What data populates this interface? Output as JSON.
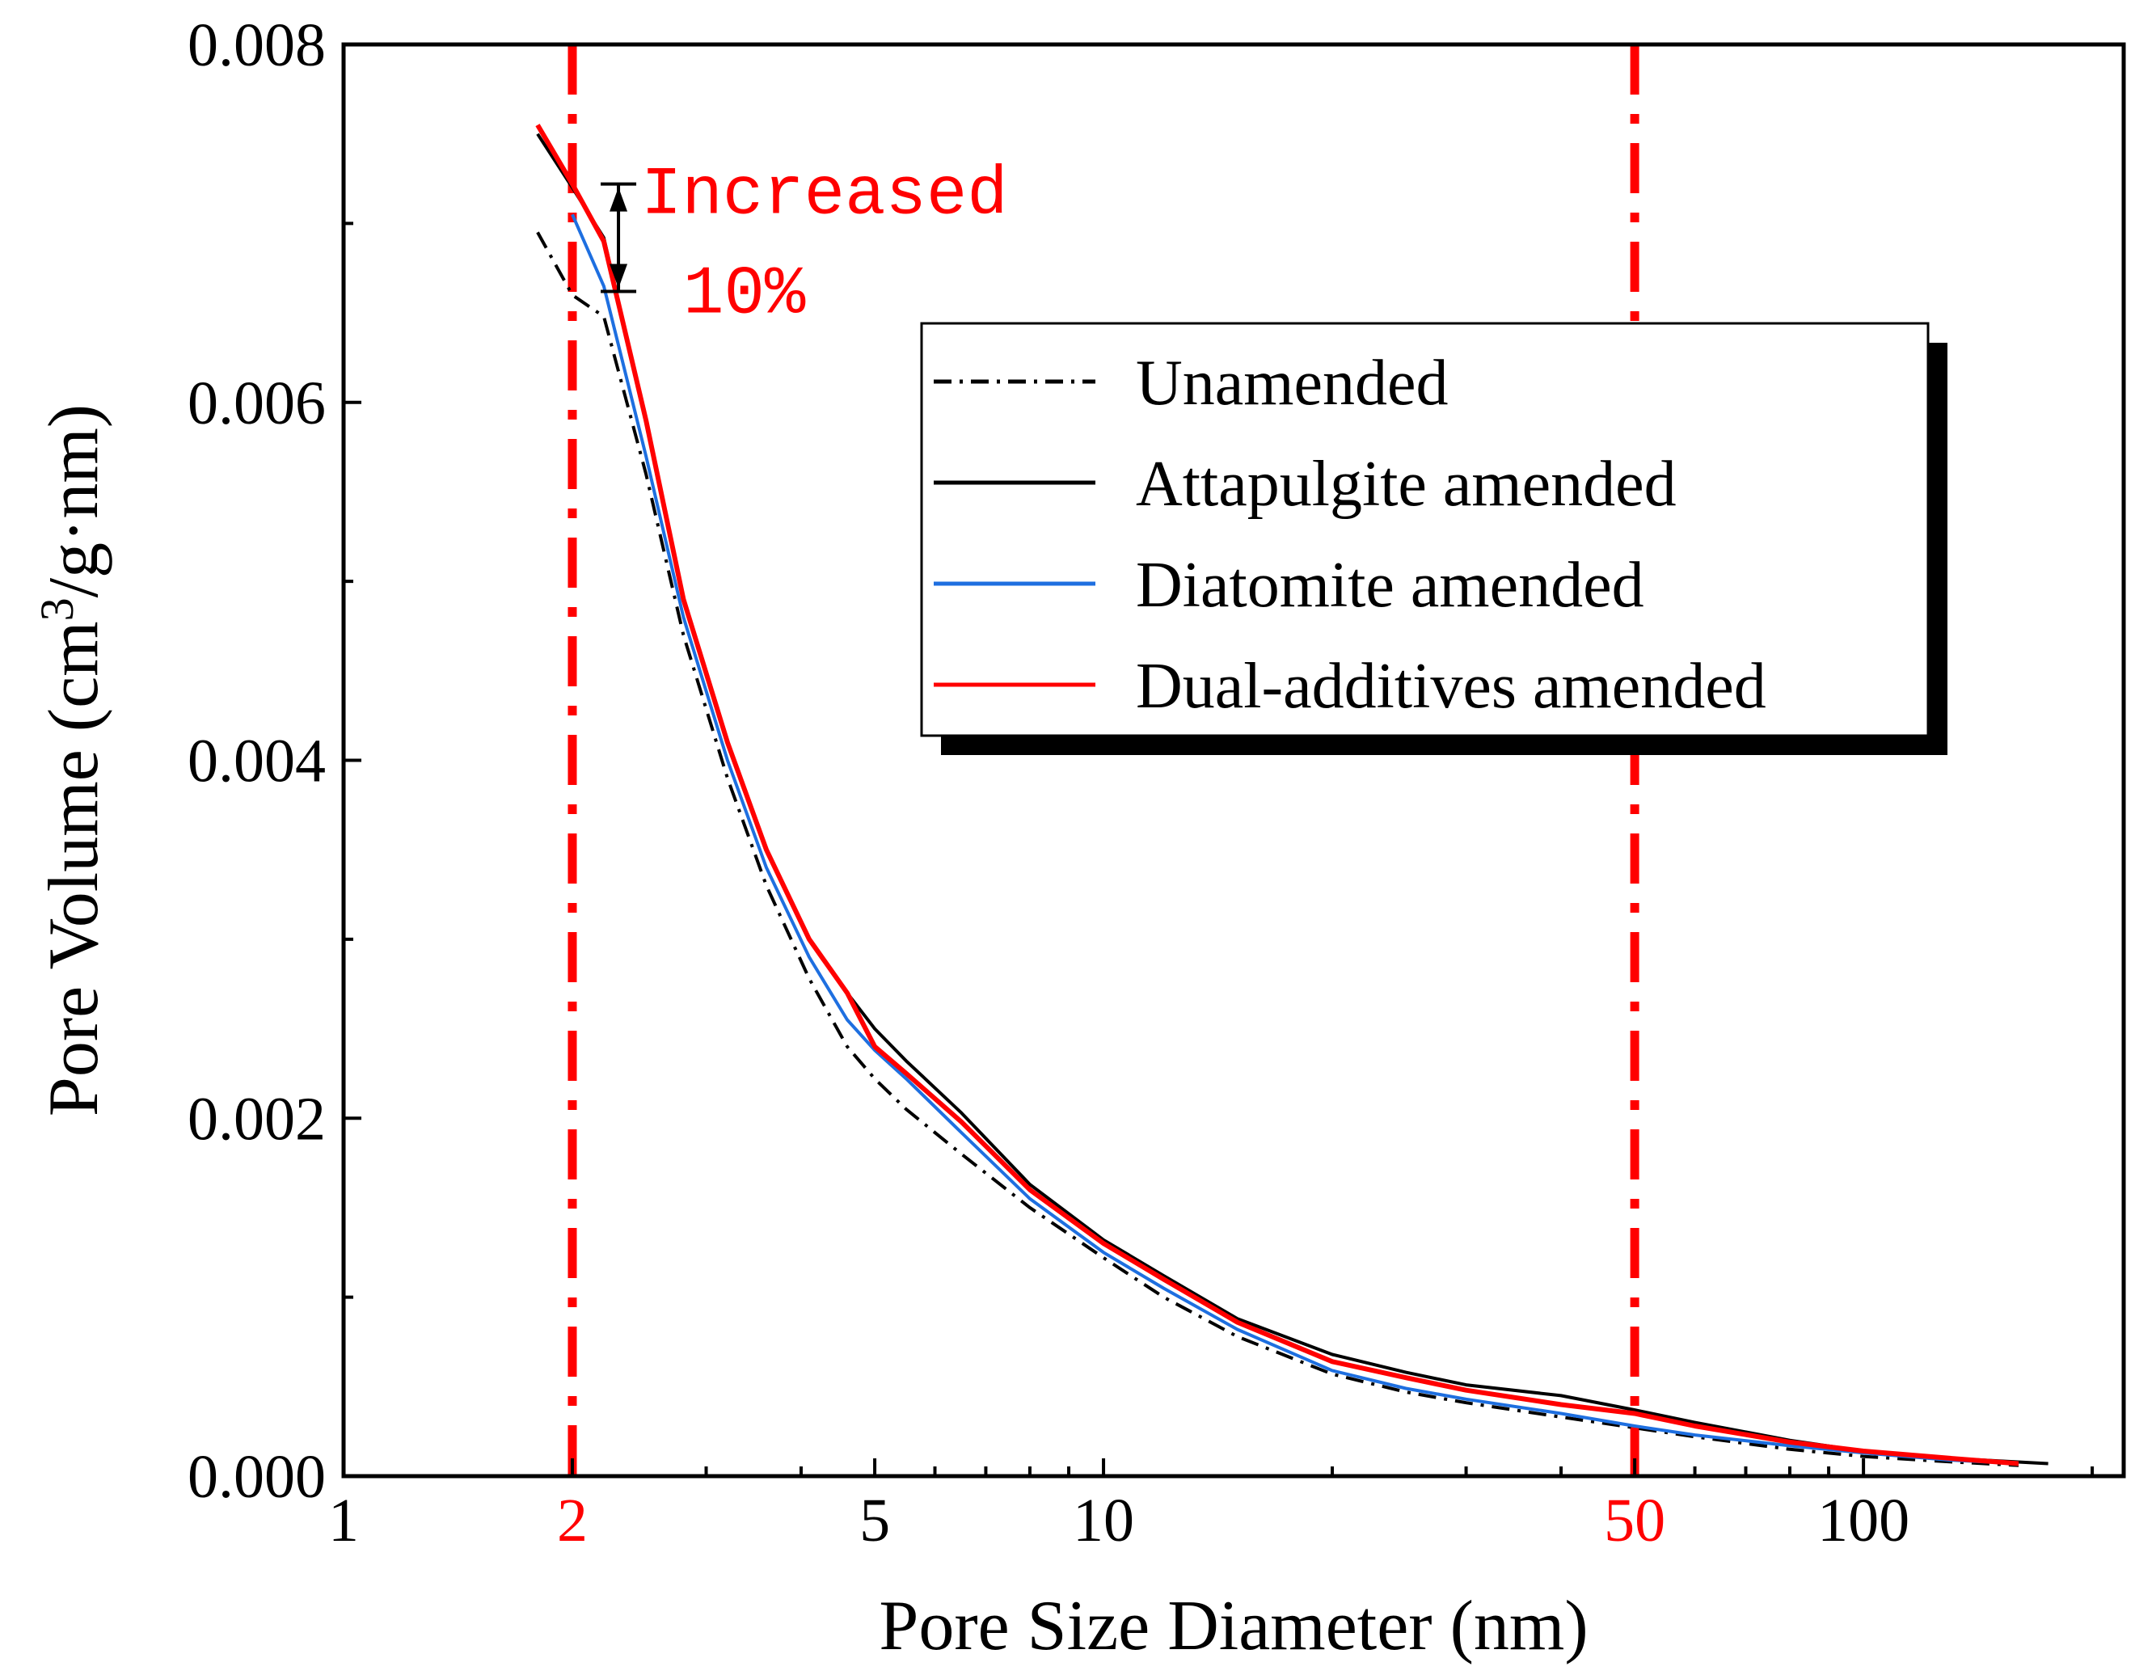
{
  "chart_data": {
    "type": "line",
    "xlabel": "Pore Size Diameter (nm)",
    "ylabel_main": "Pore Volume (cm",
    "ylabel_sup": "3",
    "ylabel_rest": "/g·nm)",
    "xscale": "log",
    "xlim": [
      1,
      220
    ],
    "ylim": [
      0,
      0.008
    ],
    "x_ticks": [
      {
        "value": 1,
        "label": "1",
        "color": "#000000"
      },
      {
        "value": 2,
        "label": "2",
        "color": "#ff0000"
      },
      {
        "value": 5,
        "label": "5",
        "color": "#000000"
      },
      {
        "value": 10,
        "label": "10",
        "color": "#000000"
      },
      {
        "value": 50,
        "label": "50",
        "color": "#ff0000"
      },
      {
        "value": 100,
        "label": "100",
        "color": "#000000"
      }
    ],
    "y_ticks": [
      {
        "value": 0,
        "label": "0.000"
      },
      {
        "value": 0.002,
        "label": "0.002"
      },
      {
        "value": 0.004,
        "label": "0.004"
      },
      {
        "value": 0.006,
        "label": "0.006"
      },
      {
        "value": 0.008,
        "label": "0.008"
      }
    ],
    "reference_lines": [
      {
        "x": 2,
        "color": "#ff0000",
        "style": "dash-dot"
      },
      {
        "x": 50,
        "color": "#ff0000",
        "style": "dash-dot"
      }
    ],
    "annotation": {
      "line1": "Increased",
      "line2": "10%",
      "color": "#ff0000",
      "x": 2.3,
      "y_top": 0.00722,
      "y_bottom": 0.00662
    },
    "legend": {
      "placement": "top-right",
      "shadow": true,
      "entries": [
        {
          "name": "Unamended",
          "color": "#000000",
          "dash": "dash-dot"
        },
        {
          "name": "Attapulgite amended",
          "color": "#000000",
          "dash": "solid"
        },
        {
          "name": "Diatomite amended",
          "color": "#1e6fe0",
          "dash": "solid"
        },
        {
          "name": "Dual-additives amended",
          "color": "#ff0000",
          "dash": "solid"
        }
      ]
    },
    "series": [
      {
        "name": "Unamended",
        "color": "#000000",
        "dash": "dash-dot",
        "width": 4,
        "x": [
          1.8,
          2.0,
          2.2,
          2.5,
          2.8,
          3.2,
          3.6,
          4.1,
          4.6,
          5.0,
          5.5,
          6.5,
          8,
          10,
          12,
          15,
          20,
          25,
          30,
          40,
          50,
          60,
          80,
          100,
          130,
          160
        ],
        "y": [
          0.00695,
          0.0066,
          0.00648,
          0.0056,
          0.0047,
          0.0039,
          0.0033,
          0.00278,
          0.0024,
          0.00222,
          0.00205,
          0.0018,
          0.0015,
          0.00122,
          0.001,
          0.00078,
          0.00057,
          0.00047,
          0.00041,
          0.00033,
          0.00027,
          0.00022,
          0.00015,
          0.00011,
          8e-05,
          6e-05
        ]
      },
      {
        "name": "Attapulgite amended",
        "color": "#000000",
        "dash": "solid",
        "width": 4,
        "x": [
          1.8,
          2.0,
          2.2,
          2.5,
          2.8,
          3.2,
          3.6,
          4.1,
          4.6,
          5.0,
          5.5,
          6.5,
          8,
          10,
          12,
          15,
          20,
          25,
          30,
          40,
          50,
          60,
          80,
          100,
          130,
          175
        ],
        "y": [
          0.0075,
          0.0072,
          0.00692,
          0.0059,
          0.0049,
          0.0041,
          0.0035,
          0.003,
          0.0027,
          0.0025,
          0.00232,
          0.00203,
          0.00163,
          0.00132,
          0.00112,
          0.00088,
          0.00068,
          0.00058,
          0.00051,
          0.00045,
          0.00037,
          0.0003,
          0.0002,
          0.00014,
          0.0001,
          7e-05
        ]
      },
      {
        "name": "Diatomite amended",
        "color": "#1e6fe0",
        "dash": "solid",
        "width": 4,
        "x": [
          2.0,
          2.2,
          2.5,
          2.8,
          3.2,
          3.6,
          4.1,
          4.6,
          5.0,
          5.5,
          6.5,
          8,
          10,
          12,
          15,
          20,
          25,
          30,
          40,
          50,
          60,
          80,
          100,
          130,
          160
        ],
        "y": [
          0.00705,
          0.00665,
          0.0057,
          0.0048,
          0.004,
          0.0034,
          0.0029,
          0.00255,
          0.00238,
          0.00222,
          0.00192,
          0.00155,
          0.00125,
          0.00105,
          0.00082,
          0.00059,
          0.00049,
          0.00043,
          0.00035,
          0.00028,
          0.00023,
          0.00017,
          0.00013,
          9e-05,
          7e-05
        ]
      },
      {
        "name": "Dual-additives amended",
        "color": "#ff0000",
        "dash": "solid",
        "width": 6,
        "x": [
          1.8,
          2.0,
          2.2,
          2.5,
          2.8,
          3.2,
          3.6,
          4.1,
          4.6,
          5.0,
          5.5,
          6.5,
          8,
          10,
          12,
          15,
          20,
          25,
          30,
          40,
          50,
          60,
          80,
          100,
          130,
          160
        ],
        "y": [
          0.00755,
          0.00722,
          0.0069,
          0.0059,
          0.0049,
          0.0041,
          0.0035,
          0.003,
          0.0027,
          0.0024,
          0.00225,
          0.00198,
          0.0016,
          0.0013,
          0.0011,
          0.00086,
          0.00064,
          0.00055,
          0.00048,
          0.0004,
          0.00035,
          0.00028,
          0.00019,
          0.00014,
          0.0001,
          7e-05
        ]
      }
    ]
  }
}
